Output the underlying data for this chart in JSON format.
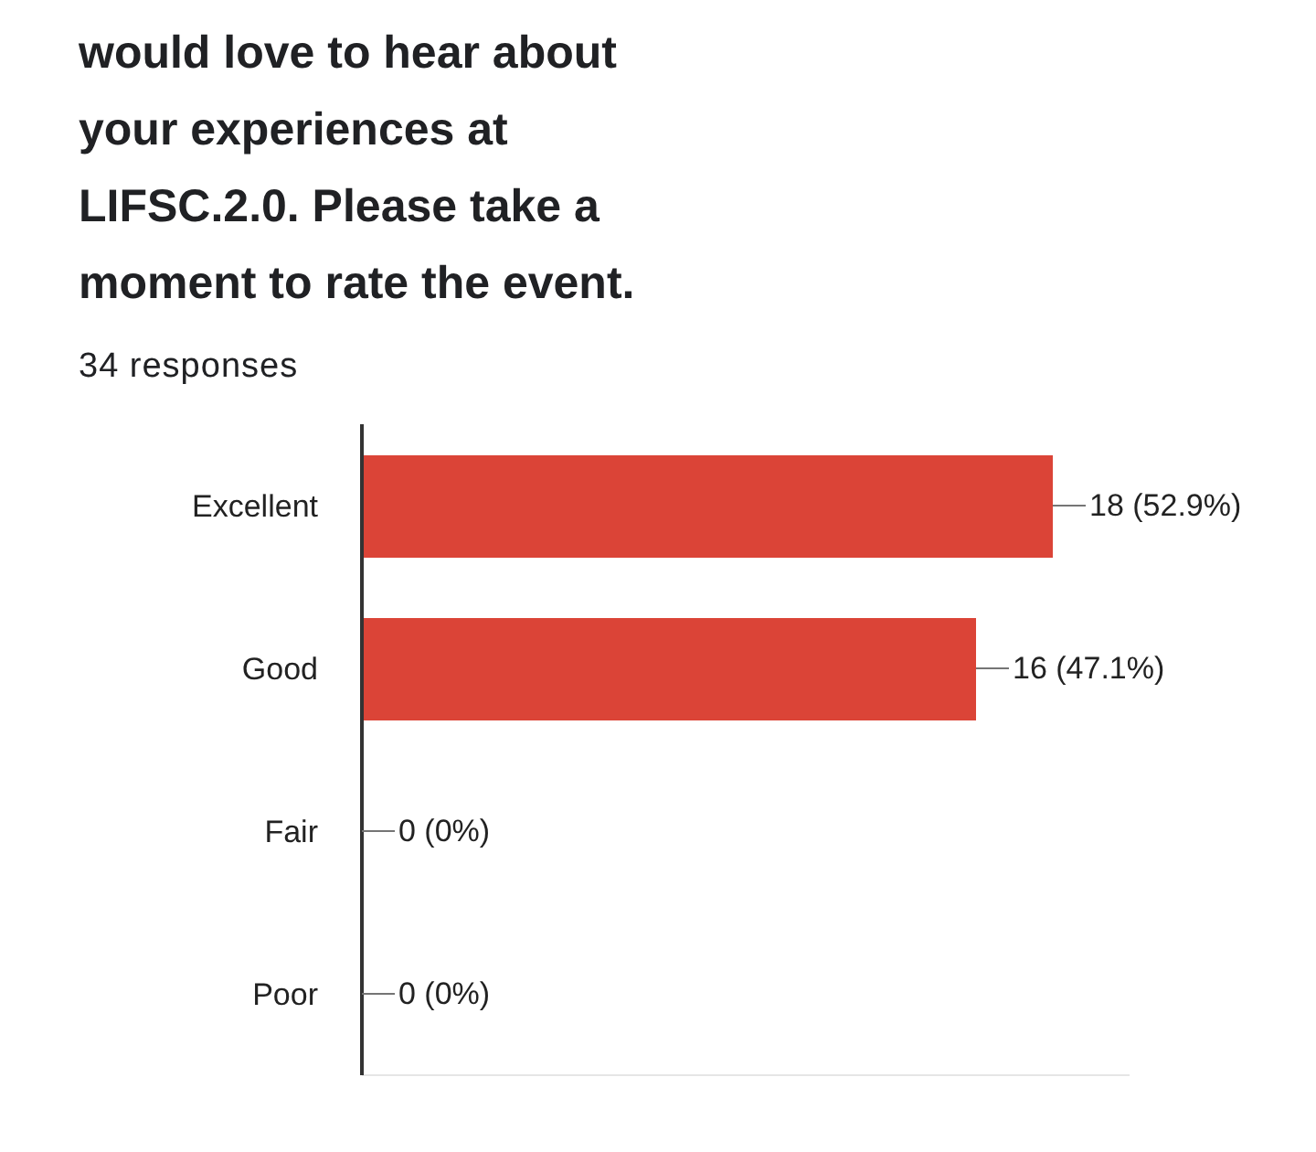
{
  "chart_data": {
    "type": "bar",
    "orientation": "horizontal",
    "title": "would love to hear about your experiences at LIFSC.2.0. Please take a moment to rate the event.",
    "subtitle": "34 responses",
    "categories": [
      "Excellent",
      "Good",
      "Fair",
      "Poor"
    ],
    "values": [
      18,
      16,
      0,
      0
    ],
    "color": "#db4437",
    "value_labels": [
      "18 (52.9%)",
      "16 (47.1%)",
      "0 (0%)",
      "0 (0%)"
    ],
    "xlim": [
      0,
      20
    ],
    "tick_labels": "y"
  }
}
